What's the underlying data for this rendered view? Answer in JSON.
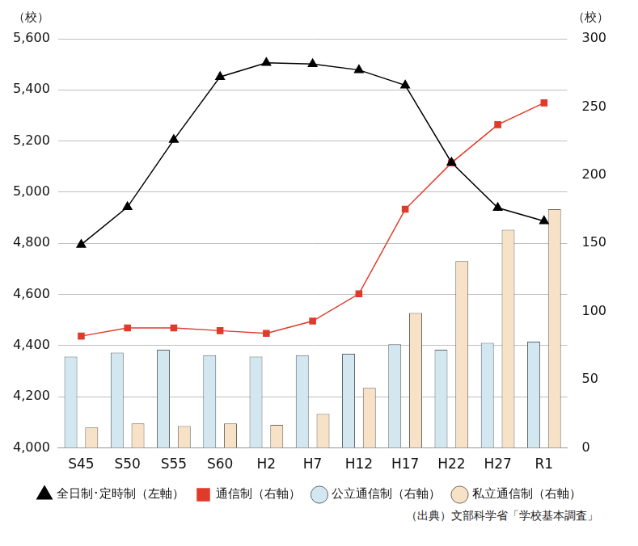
{
  "chart_data": {
    "type": "bar",
    "ylabel": "（校）",
    "y2label": "（校）",
    "note": "（出典）文部科学省「学校基本調査」",
    "categories": [
      "S45",
      "S50",
      "S55",
      "S60",
      "H2",
      "H7",
      "H12",
      "H17",
      "H22",
      "H27",
      "R1"
    ],
    "series": [
      {
        "name": "公立通信制（右軸）",
        "type": "bar",
        "axis": "y2",
        "color": "#d3e7f0",
        "values": [
          67,
          70,
          72,
          68,
          67,
          68,
          69,
          76,
          72,
          77,
          78
        ]
      },
      {
        "name": "私立通信制（右軸）",
        "type": "bar",
        "axis": "y2",
        "color": "#f7e2c8",
        "values": [
          15,
          18,
          16,
          18,
          17,
          25,
          44,
          99,
          137,
          160,
          175
        ]
      },
      {
        "name": "全日制･定時制（左軸）",
        "type": "line",
        "axis": "y",
        "color": "#000000",
        "marker": "triangle",
        "values": [
          4795,
          4942,
          5205,
          5451,
          5506,
          5501,
          5478,
          5418,
          5116,
          4939,
          4887
        ]
      },
      {
        "name": "通信制（右軸）",
        "type": "line",
        "axis": "y2",
        "color": "#e03a2a",
        "marker": "square",
        "values": [
          82,
          88,
          88,
          86,
          84,
          93,
          113,
          175,
          209,
          237,
          253
        ]
      }
    ],
    "ylim": [
      4000,
      5600
    ],
    "yticks": [
      {
        "value": 4000,
        "label": "4,000"
      },
      {
        "value": 4200,
        "label": "4,200"
      },
      {
        "value": 4400,
        "label": "4,400"
      },
      {
        "value": 4600,
        "label": "4,600"
      },
      {
        "value": 4800,
        "label": "4,800"
      },
      {
        "value": 5000,
        "label": "5,000"
      },
      {
        "value": 5200,
        "label": "5,200"
      },
      {
        "value": 5400,
        "label": "5,400"
      },
      {
        "value": 5600,
        "label": "5,600"
      }
    ],
    "y2lim": [
      0,
      300
    ],
    "y2ticks": [
      0,
      50,
      100,
      150,
      200,
      250,
      300
    ],
    "grid": true,
    "legend": "bottom"
  }
}
